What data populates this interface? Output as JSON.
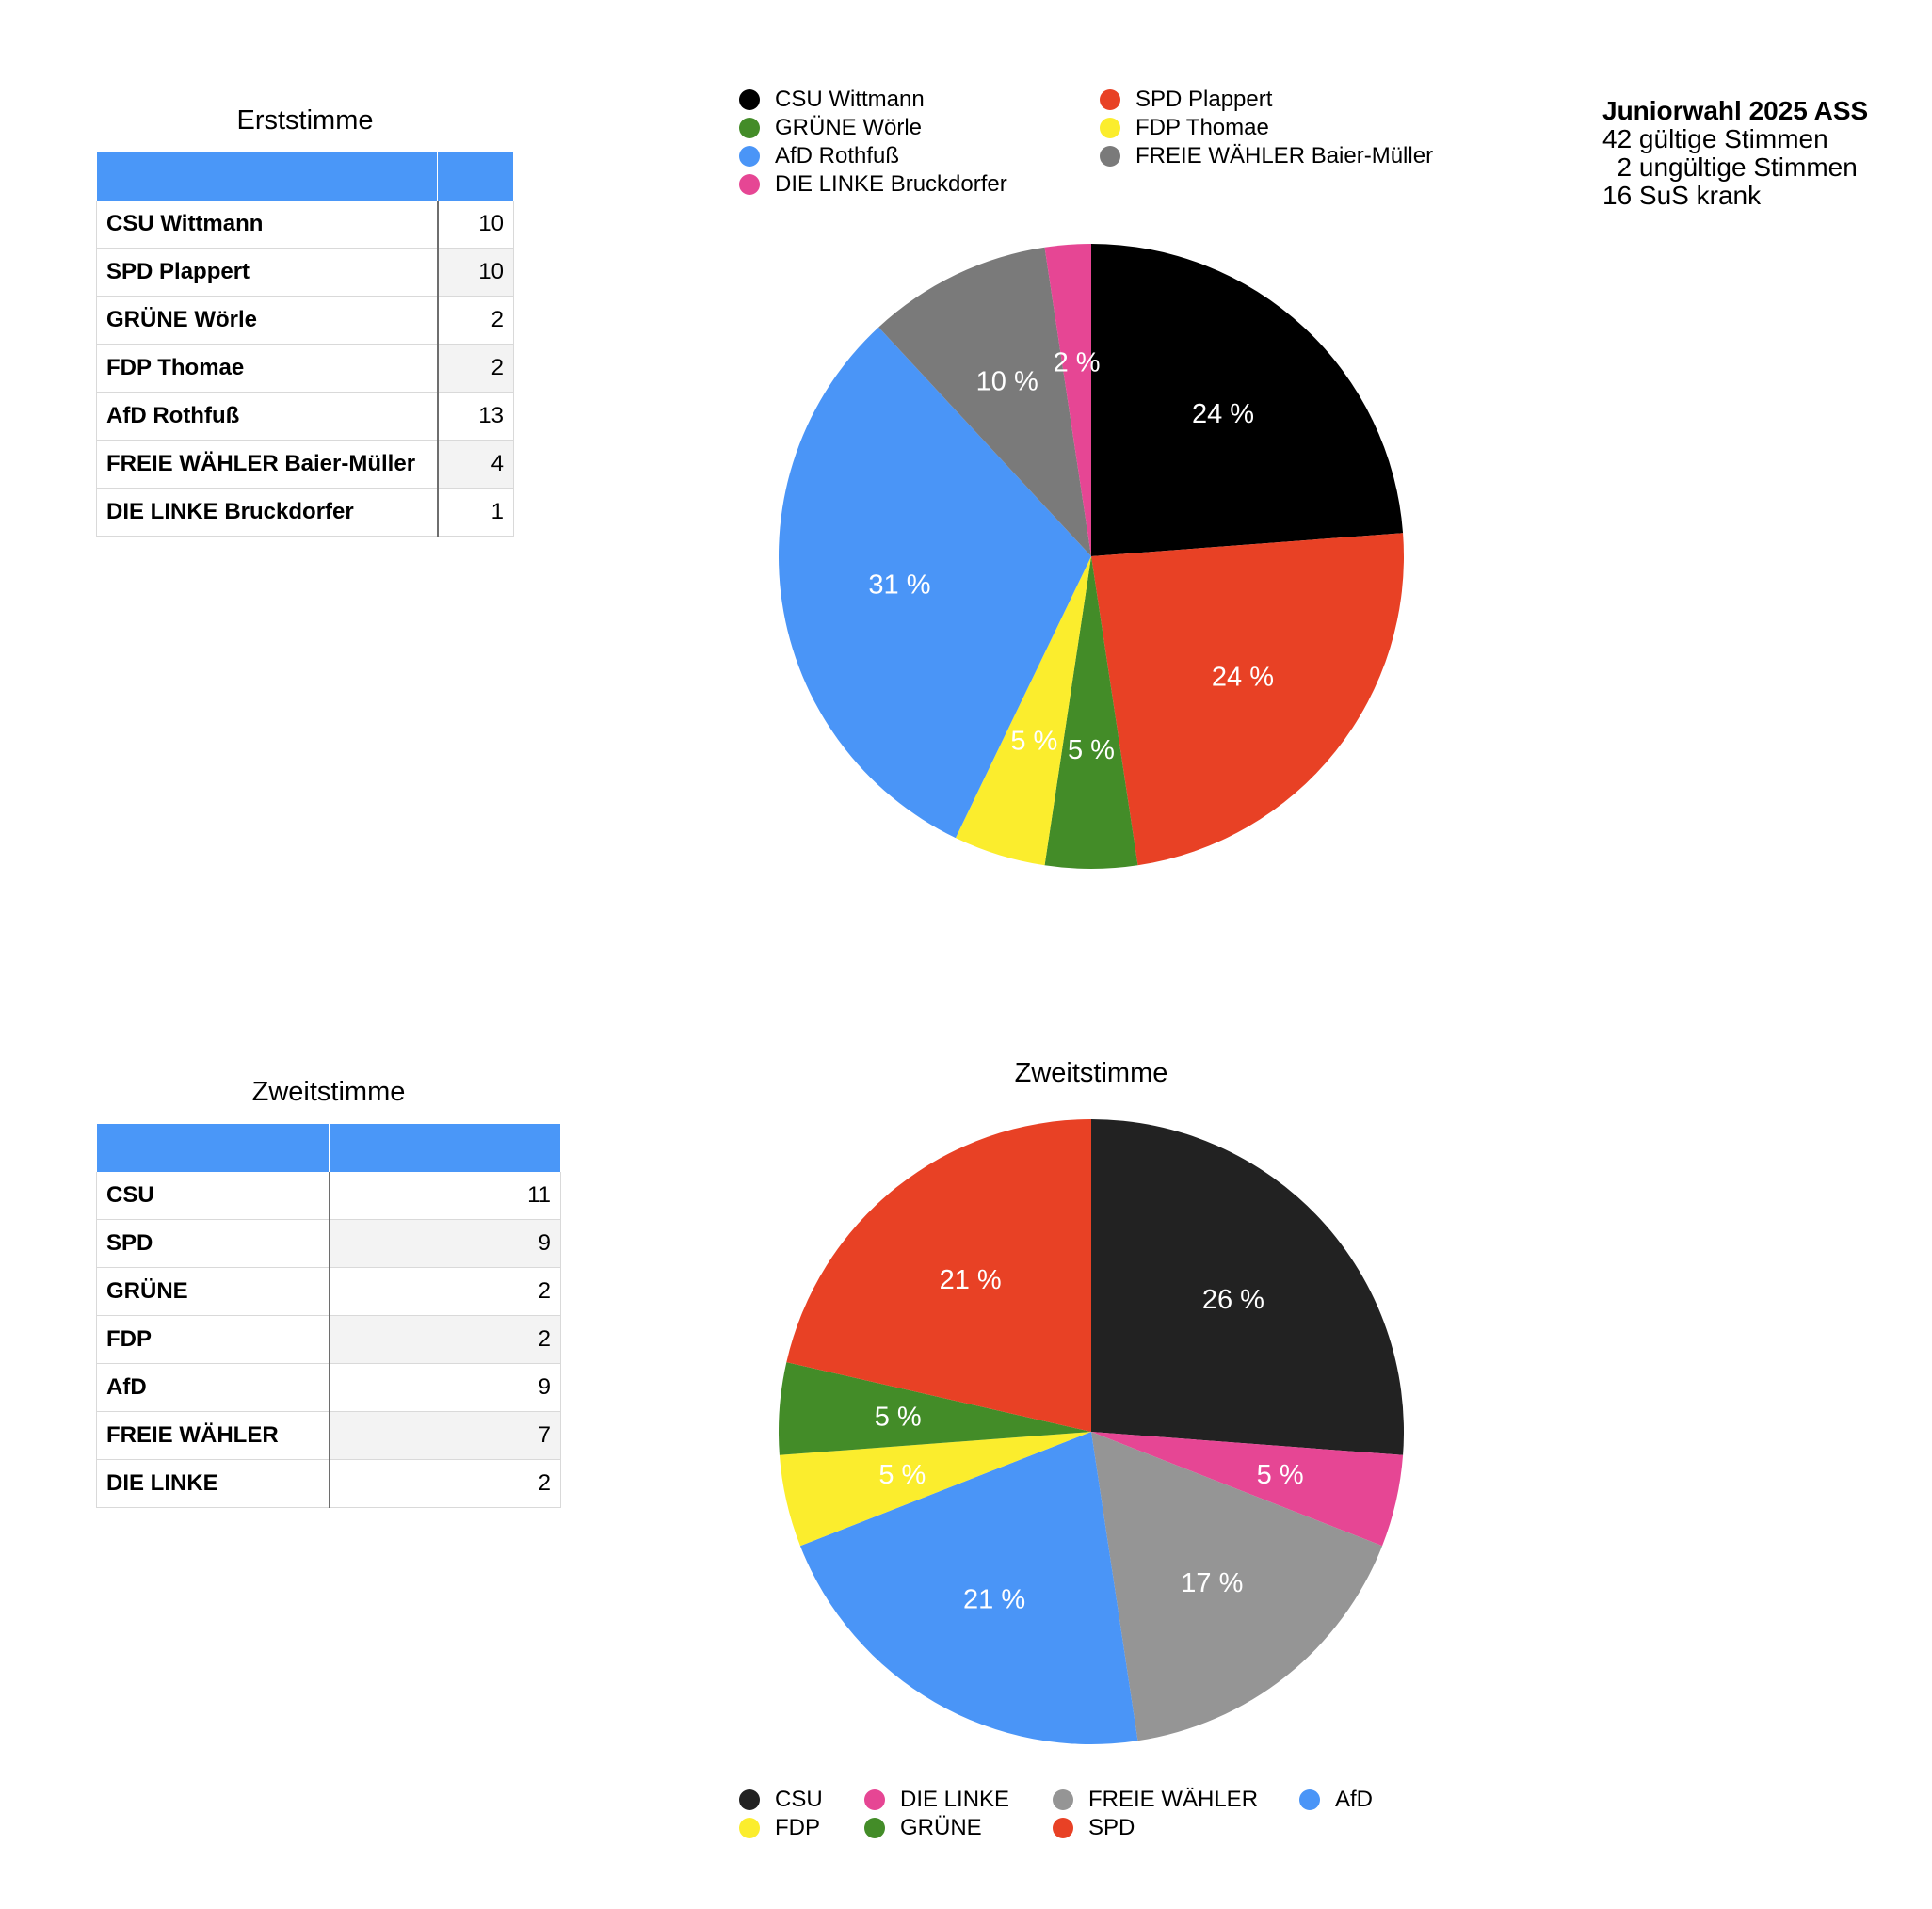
{
  "info": {
    "title": "Juniorwahl 2025 ASS",
    "lines": [
      "42 gültige Stimmen",
      "  2 ungültige Stimmen",
      "16 SuS krank"
    ]
  },
  "tables": {
    "erststimme": {
      "title": "Erststimme",
      "header": [
        "",
        ""
      ],
      "rows": [
        {
          "name": "CSU Wittmann",
          "value": "10"
        },
        {
          "name": "SPD Plappert",
          "value": "10"
        },
        {
          "name": "GRÜNE Wörle",
          "value": "2"
        },
        {
          "name": "FDP Thomae",
          "value": "2"
        },
        {
          "name": "AfD Rothfuß",
          "value": "13"
        },
        {
          "name": "FREIE WÄHLER Baier-Müller",
          "value": "4"
        },
        {
          "name": "DIE LINKE Bruckdorfer",
          "value": "1"
        }
      ]
    },
    "zweitstimme": {
      "title": "Zweitstimme",
      "header": [
        "",
        ""
      ],
      "rows": [
        {
          "name": "CSU",
          "value": "11"
        },
        {
          "name": "SPD",
          "value": "9"
        },
        {
          "name": "GRÜNE",
          "value": "2"
        },
        {
          "name": "FDP",
          "value": "2"
        },
        {
          "name": "AfD",
          "value": "9"
        },
        {
          "name": "FREIE WÄHLER",
          "value": "7"
        },
        {
          "name": "DIE LINKE",
          "value": "2"
        }
      ]
    }
  },
  "chart_data": [
    {
      "type": "pie",
      "title": "",
      "start": "top",
      "direction": "clockwise",
      "legend_position": "top",
      "legend_order": [
        "CSU Wittmann",
        "SPD Plappert",
        "GRÜNE Wörle",
        "FDP Thomae",
        "AfD Rothfuß",
        "FREIE WÄHLER Baier-Müller",
        "DIE LINKE Bruckdorfer"
      ],
      "slices": [
        {
          "label": "CSU Wittmann",
          "value": 10,
          "percent_label": "24 %",
          "color": "#000000"
        },
        {
          "label": "SPD Plappert",
          "value": 10,
          "percent_label": "24 %",
          "color": "#e84125"
        },
        {
          "label": "GRÜNE Wörle",
          "value": 2,
          "percent_label": "5 %",
          "color": "#438c28"
        },
        {
          "label": "FDP Thomae",
          "value": 2,
          "percent_label": "5 %",
          "color": "#fbed2d"
        },
        {
          "label": "AfD Rothfuß",
          "value": 13,
          "percent_label": "31 %",
          "color": "#4a95f7"
        },
        {
          "label": "FREIE WÄHLER Baier-Müller",
          "value": 4,
          "percent_label": "10 %",
          "color": "#7a7a7a"
        },
        {
          "label": "DIE LINKE Bruckdorfer",
          "value": 1,
          "percent_label": "2 %",
          "color": "#e64694"
        }
      ]
    },
    {
      "type": "pie",
      "title": "Zweitstimme",
      "start": "top",
      "direction": "clockwise",
      "legend_position": "bottom",
      "legend_order": [
        "CSU",
        "DIE LINKE",
        "FREIE WÄHLER",
        "AfD",
        "FDP",
        "GRÜNE",
        "SPD"
      ],
      "slices": [
        {
          "label": "CSU",
          "value": 11,
          "percent_label": "26 %",
          "color": "#222222"
        },
        {
          "label": "DIE LINKE",
          "value": 2,
          "percent_label": "5 %",
          "color": "#e64694"
        },
        {
          "label": "FREIE WÄHLER",
          "value": 7,
          "percent_label": "17 %",
          "color": "#959595"
        },
        {
          "label": "AfD",
          "value": 9,
          "percent_label": "21 %",
          "color": "#4a95f7"
        },
        {
          "label": "FDP",
          "value": 2,
          "percent_label": "5 %",
          "color": "#fbed2d"
        },
        {
          "label": "GRÜNE",
          "value": 2,
          "percent_label": "5 %",
          "color": "#438c28"
        },
        {
          "label": "SPD",
          "value": 9,
          "percent_label": "21 %",
          "color": "#e84125"
        }
      ]
    }
  ]
}
